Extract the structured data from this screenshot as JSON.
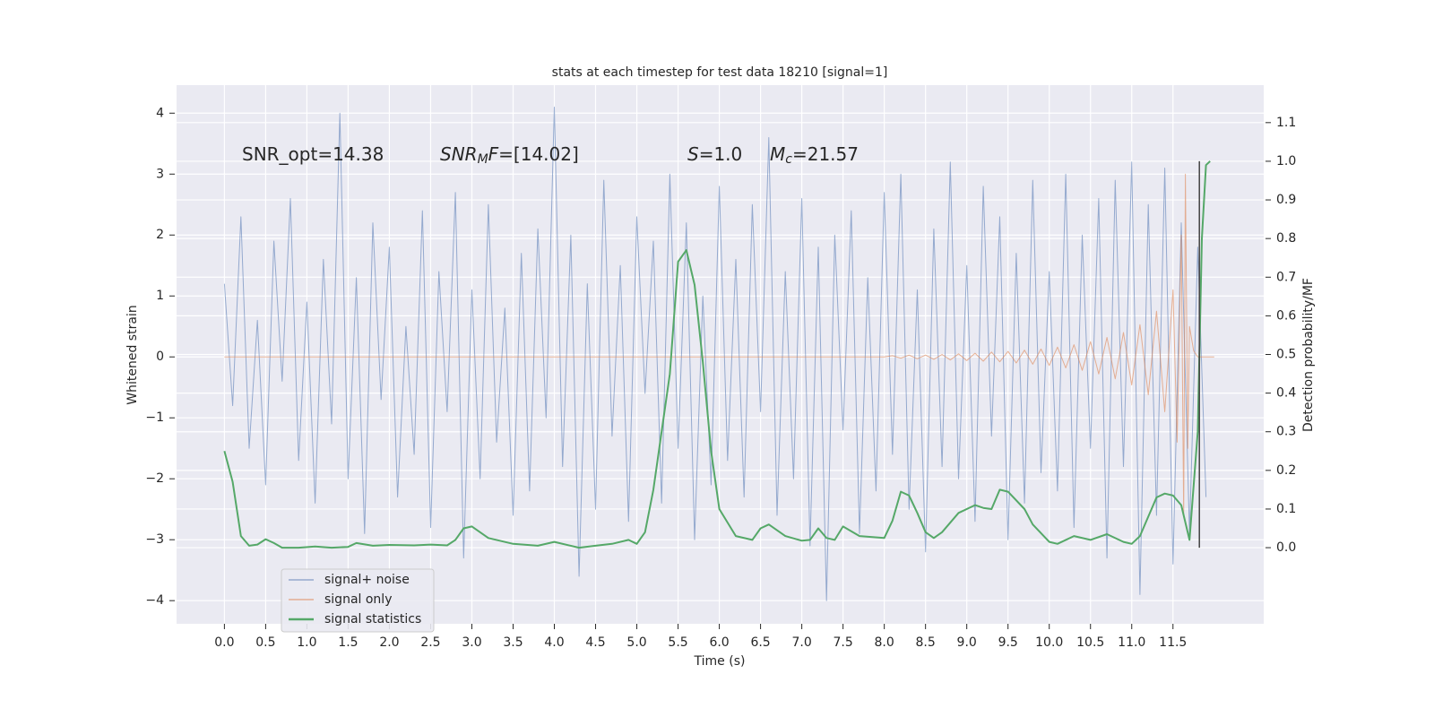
{
  "chart_data": {
    "type": "line",
    "title": "stats at each timestep for test data 18210 [signal=1]",
    "x_label": "Time (s)",
    "y_label": "Whitened strain",
    "y2_label": "Detection probability/MF",
    "annotations": [
      [
        "SNR_opt=14.38"
      ],
      [
        "SNR",
        "M",
        "F",
        "=[14.02]"
      ],
      [
        "S",
        "=1.0"
      ],
      [
        "M",
        "c",
        "=21.57"
      ]
    ],
    "xlim": [
      -0.58,
      12.6
    ],
    "xticks": [
      {
        "value": 0,
        "label": "0.0"
      },
      0.5,
      {
        "value": 1,
        "label": "1.0"
      },
      1.5,
      {
        "value": 2,
        "label": "2.0"
      },
      2.5,
      {
        "value": 3,
        "label": "3.0"
      },
      3.5,
      {
        "value": 4,
        "label": "4.0"
      },
      4.5,
      {
        "value": 5,
        "label": "5.0"
      },
      5.5,
      {
        "value": 6,
        "label": "6.0"
      },
      6.5,
      {
        "value": 7,
        "label": "7.0"
      },
      7.5,
      {
        "value": 8,
        "label": "8.0"
      },
      8.5,
      {
        "value": 9,
        "label": "9.0"
      },
      9.5,
      {
        "value": 10,
        "label": "10.0"
      },
      10.5,
      {
        "value": 11,
        "label": "11.0"
      },
      11.5
    ],
    "ylim": [
      -4.38,
      4.46
    ],
    "yticks": [
      {
        "value": -4,
        "label": "−4"
      },
      {
        "value": -3,
        "label": "−3"
      },
      {
        "value": -2,
        "label": "−2"
      },
      {
        "value": -1,
        "label": "−1"
      },
      0,
      1,
      2,
      3,
      4
    ],
    "y2lim": [
      -0.197,
      1.197
    ],
    "y2ticks": [
      {
        "value": 0,
        "label": "0.0"
      },
      0.1,
      0.2,
      0.3,
      0.4,
      0.5,
      0.6,
      0.7,
      0.8,
      0.9,
      {
        "value": 1,
        "label": "1.0"
      },
      1.1
    ],
    "grid": true,
    "legend": "lower left",
    "marker_line": {
      "x": 11.82,
      "y2": [
        0,
        1
      ],
      "color": "#444444"
    },
    "series": [
      {
        "name": "signal+ noise",
        "color": "#4c72b0",
        "x": [
          0.0,
          0.1,
          0.2,
          0.3,
          0.4,
          0.5,
          0.6,
          0.7,
          0.8,
          0.9,
          1.0,
          1.1,
          1.2,
          1.3,
          1.4,
          1.5,
          1.6,
          1.7,
          1.8,
          1.9,
          2.0,
          2.1,
          2.2,
          2.3,
          2.4,
          2.5,
          2.6,
          2.7,
          2.8,
          2.9,
          3.0,
          3.1,
          3.2,
          3.3,
          3.4,
          3.5,
          3.6,
          3.7,
          3.8,
          3.9,
          4.0,
          4.1,
          4.2,
          4.3,
          4.4,
          4.5,
          4.6,
          4.7,
          4.8,
          4.9,
          5.0,
          5.1,
          5.2,
          5.3,
          5.4,
          5.5,
          5.6,
          5.7,
          5.8,
          5.9,
          6.0,
          6.1,
          6.2,
          6.3,
          6.4,
          6.5,
          6.6,
          6.7,
          6.8,
          6.9,
          7.0,
          7.1,
          7.2,
          7.3,
          7.4,
          7.5,
          7.6,
          7.7,
          7.8,
          7.9,
          8.0,
          8.1,
          8.2,
          8.3,
          8.4,
          8.5,
          8.6,
          8.7,
          8.8,
          8.9,
          9.0,
          9.1,
          9.2,
          9.3,
          9.4,
          9.5,
          9.6,
          9.7,
          9.8,
          9.9,
          10.0,
          10.1,
          10.2,
          10.3,
          10.4,
          10.5,
          10.6,
          10.7,
          10.8,
          10.9,
          11.0,
          11.1,
          11.2,
          11.3,
          11.4,
          11.5,
          11.6,
          11.7,
          11.8,
          11.9
        ],
        "values": [
          1.2,
          -0.8,
          2.3,
          -1.5,
          0.6,
          -2.1,
          1.9,
          -0.4,
          2.6,
          -1.7,
          0.9,
          -2.4,
          1.6,
          -1.1,
          4.0,
          -2.0,
          1.3,
          -2.9,
          2.2,
          -0.7,
          1.8,
          -2.3,
          0.5,
          -1.6,
          2.4,
          -2.8,
          1.4,
          -0.9,
          2.7,
          -3.3,
          1.1,
          -2.0,
          2.5,
          -1.4,
          0.8,
          -2.6,
          1.7,
          -2.2,
          2.1,
          -1.0,
          4.1,
          -1.8,
          2.0,
          -3.6,
          1.2,
          -2.5,
          2.9,
          -1.3,
          1.5,
          -2.7,
          2.3,
          -0.6,
          1.9,
          -2.4,
          3.0,
          -1.5,
          2.2,
          -3.0,
          1.0,
          -2.1,
          2.8,
          -1.7,
          1.6,
          -2.3,
          2.5,
          -0.9,
          3.6,
          -2.6,
          1.4,
          -2.0,
          2.6,
          -3.1,
          1.8,
          -4.0,
          2.0,
          -1.2,
          2.4,
          -2.9,
          1.3,
          -2.2,
          2.7,
          -1.6,
          3.0,
          -2.5,
          1.1,
          -3.2,
          2.1,
          -1.8,
          3.2,
          -2.0,
          1.5,
          -2.7,
          2.8,
          -1.3,
          2.3,
          -3.0,
          1.7,
          -2.4,
          2.9,
          -1.9,
          1.4,
          -2.2,
          3.0,
          -2.8,
          2.0,
          -1.5,
          2.6,
          -3.3,
          2.9,
          -1.8,
          3.2,
          -3.9,
          2.5,
          -2.6,
          3.1,
          -3.4,
          2.2,
          -2.9,
          1.8,
          -2.3
        ]
      },
      {
        "name": "signal only",
        "color": "#dd8452",
        "x": [
          0.0,
          8.0,
          8.1,
          8.2,
          8.3,
          8.4,
          8.5,
          8.6,
          8.7,
          8.8,
          8.9,
          9.0,
          9.1,
          9.2,
          9.3,
          9.4,
          9.5,
          9.6,
          9.7,
          9.8,
          9.9,
          10.0,
          10.1,
          10.2,
          10.3,
          10.4,
          10.5,
          10.6,
          10.7,
          10.8,
          10.9,
          11.0,
          11.1,
          11.2,
          11.3,
          11.4,
          11.5,
          11.55,
          11.6,
          11.63,
          11.65,
          11.68,
          11.7,
          11.75,
          11.8,
          12.0
        ],
        "values": [
          0,
          0,
          0.02,
          -0.02,
          0.03,
          -0.03,
          0.03,
          -0.04,
          0.04,
          -0.05,
          0.05,
          -0.06,
          0.06,
          -0.07,
          0.08,
          -0.08,
          0.09,
          -0.1,
          0.11,
          -0.12,
          0.13,
          -0.14,
          0.16,
          -0.18,
          0.2,
          -0.22,
          0.25,
          -0.28,
          0.32,
          -0.36,
          0.4,
          -0.46,
          0.53,
          -0.62,
          0.75,
          -0.9,
          1.1,
          -1.4,
          2.0,
          -2.6,
          3.0,
          -1.5,
          0.5,
          0.1,
          0,
          0
        ]
      },
      {
        "name": "signal statistics",
        "color": "#55a868",
        "axis": "y2",
        "x": [
          0.0,
          0.1,
          0.2,
          0.3,
          0.4,
          0.5,
          0.6,
          0.7,
          0.9,
          1.1,
          1.3,
          1.5,
          1.6,
          1.8,
          2.0,
          2.3,
          2.5,
          2.7,
          2.8,
          2.9,
          3.0,
          3.2,
          3.5,
          3.8,
          4.0,
          4.3,
          4.5,
          4.7,
          4.9,
          5.0,
          5.1,
          5.2,
          5.3,
          5.4,
          5.5,
          5.6,
          5.7,
          5.8,
          5.9,
          6.0,
          6.2,
          6.4,
          6.5,
          6.6,
          6.8,
          7.0,
          7.1,
          7.2,
          7.3,
          7.4,
          7.5,
          7.7,
          8.0,
          8.1,
          8.2,
          8.3,
          8.4,
          8.5,
          8.6,
          8.7,
          8.9,
          9.1,
          9.2,
          9.3,
          9.4,
          9.5,
          9.7,
          9.8,
          10.0,
          10.1,
          10.3,
          10.5,
          10.7,
          10.9,
          11.0,
          11.1,
          11.3,
          11.4,
          11.5,
          11.6,
          11.7,
          11.8,
          11.85,
          11.9,
          11.95
        ],
        "values": [
          0.25,
          0.17,
          0.03,
          0.005,
          0.008,
          0.022,
          0.012,
          0.0,
          0.0,
          0.003,
          0.0,
          0.002,
          0.012,
          0.005,
          0.007,
          0.006,
          0.008,
          0.006,
          0.02,
          0.05,
          0.055,
          0.025,
          0.01,
          0.005,
          0.015,
          0.0,
          0.005,
          0.01,
          0.02,
          0.01,
          0.04,
          0.15,
          0.3,
          0.45,
          0.74,
          0.77,
          0.68,
          0.48,
          0.25,
          0.1,
          0.03,
          0.02,
          0.05,
          0.06,
          0.03,
          0.018,
          0.02,
          0.05,
          0.025,
          0.02,
          0.055,
          0.03,
          0.025,
          0.07,
          0.145,
          0.135,
          0.09,
          0.04,
          0.025,
          0.04,
          0.09,
          0.11,
          0.103,
          0.1,
          0.15,
          0.145,
          0.1,
          0.06,
          0.015,
          0.01,
          0.03,
          0.02,
          0.035,
          0.015,
          0.01,
          0.03,
          0.13,
          0.14,
          0.135,
          0.11,
          0.02,
          0.3,
          0.8,
          0.99,
          1.0
        ]
      }
    ]
  }
}
